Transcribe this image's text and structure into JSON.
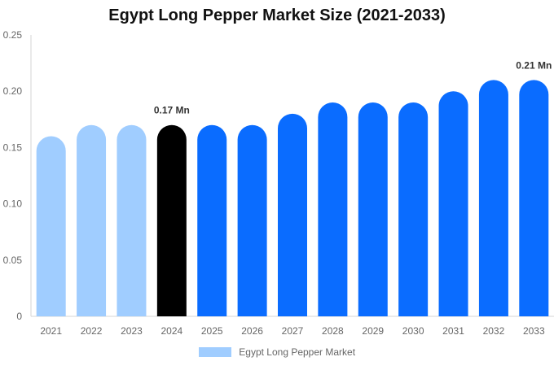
{
  "chart_data": {
    "type": "bar",
    "title": "Egypt Long Pepper Market Size (2021-2033)",
    "categories": [
      "2021",
      "2022",
      "2023",
      "2024",
      "2025",
      "2026",
      "2027",
      "2028",
      "2029",
      "2030",
      "2031",
      "2032",
      "2033"
    ],
    "series": [
      {
        "name": "Egypt Long Pepper Market",
        "values": [
          0.16,
          0.17,
          0.17,
          0.17,
          0.17,
          0.17,
          0.18,
          0.19,
          0.19,
          0.19,
          0.2,
          0.21,
          0.21
        ]
      }
    ],
    "bar_colors": [
      "#a0cdff",
      "#a0cdff",
      "#a0cdff",
      "#000000",
      "#0a6cff",
      "#0a6cff",
      "#0a6cff",
      "#0a6cff",
      "#0a6cff",
      "#0a6cff",
      "#0a6cff",
      "#0a6cff",
      "#0a6cff"
    ],
    "data_labels": [
      {
        "category": "2024",
        "text": "0.17 Mn"
      },
      {
        "category": "2033",
        "text": "0.21 Mn"
      }
    ],
    "y_ticks": [
      "0",
      "0.05",
      "0.10",
      "0.15",
      "0.20",
      "0.25"
    ],
    "ylim": [
      0,
      0.25
    ],
    "xlabel": "",
    "ylabel": "",
    "grid": false,
    "legend": {
      "position": "bottom",
      "color": "#a0cdff"
    }
  }
}
